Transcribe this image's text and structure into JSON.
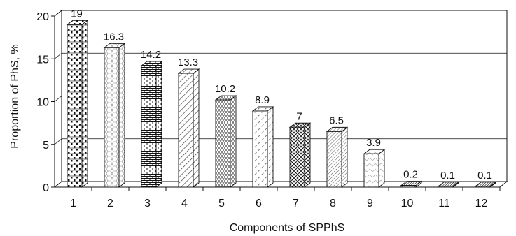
{
  "chart_data": {
    "type": "bar",
    "title": "",
    "xlabel": "Components of SPPhS",
    "ylabel": "Proportion of PhS, %",
    "categories": [
      "1",
      "2",
      "3",
      "4",
      "5",
      "6",
      "7",
      "8",
      "9",
      "10",
      "11",
      "12"
    ],
    "values": [
      19,
      16.3,
      14.2,
      13.3,
      10.2,
      8.9,
      7,
      6.5,
      3.9,
      0.2,
      0.1,
      0.1
    ],
    "value_labels": [
      "19",
      "16.3",
      "14.2",
      "13.3",
      "10.2",
      "8.9",
      "7",
      "6.5",
      "3.9",
      "0.2",
      "0.1",
      "0.1"
    ],
    "ylim": [
      0,
      20
    ],
    "yticks": [
      "0",
      "5",
      "10",
      "15",
      "20"
    ],
    "grid": true,
    "style": "3d-bars",
    "patterns": [
      "dots-brick",
      "hexagon",
      "brick",
      "diagonal-wide",
      "dashed-vertical",
      "diagonal-dashed",
      "crosshatch",
      "diagonal-fine",
      "zigzag",
      "dense-diagonal",
      "dense-diagonal",
      "dense-diagonal"
    ]
  }
}
